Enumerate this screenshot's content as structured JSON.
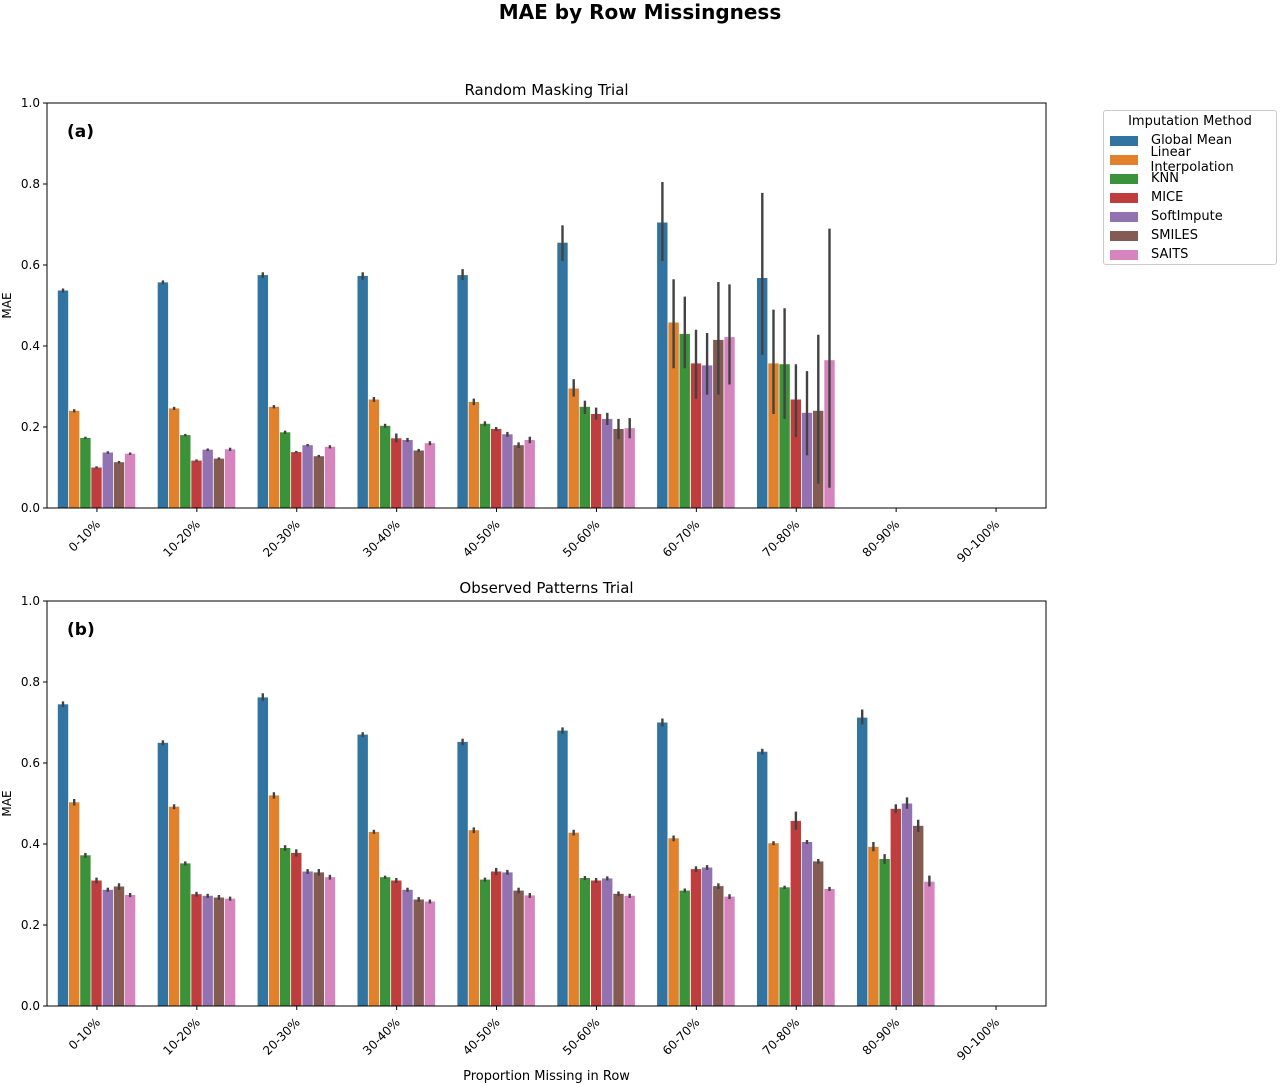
{
  "figure": {
    "suptitle": "MAE by Row Missingness",
    "legend_title": "Imputation Method"
  },
  "methods": [
    {
      "name": "Global Mean",
      "color": "#3274a1"
    },
    {
      "name": "Linear Interpolation",
      "color": "#e1812c"
    },
    {
      "name": "KNN",
      "color": "#3a923a"
    },
    {
      "name": "MICE",
      "color": "#c03d3e"
    },
    {
      "name": "SoftImpute",
      "color": "#9372b2"
    },
    {
      "name": "SMILES",
      "color": "#845b53"
    },
    {
      "name": "SAITS",
      "color": "#d684bd"
    }
  ],
  "chart_data": [
    {
      "type": "bar",
      "title": "Random Masking Trial",
      "panel_label": "(a)",
      "xlabel": "",
      "ylabel": "MAE",
      "ylim": [
        0,
        1.0
      ],
      "yticks": [
        "0.0",
        "0.2",
        "0.4",
        "0.6",
        "0.8",
        "1.0"
      ],
      "categories": [
        "0-10%",
        "10-20%",
        "20-30%",
        "30-40%",
        "40-50%",
        "50-60%",
        "60-70%",
        "70-80%",
        "80-90%",
        "90-100%"
      ],
      "legend": "outside-upper-right",
      "series": [
        {
          "name": "Global Mean",
          "values": [
            0.537,
            0.557,
            0.575,
            0.573,
            0.575,
            0.655,
            0.705,
            0.568,
            null,
            null
          ],
          "err": [
            [
              0.532,
              0.542
            ],
            [
              0.552,
              0.562
            ],
            [
              0.568,
              0.582
            ],
            [
              0.564,
              0.582
            ],
            [
              0.563,
              0.59
            ],
            [
              0.61,
              0.698
            ],
            [
              0.61,
              0.805
            ],
            [
              0.378,
              0.778
            ],
            [
              null,
              null
            ],
            [
              null,
              null
            ]
          ]
        },
        {
          "name": "Linear Interpolation",
          "values": [
            0.24,
            0.246,
            0.25,
            0.268,
            0.262,
            0.295,
            0.458,
            0.357,
            null,
            null
          ],
          "err": [
            [
              0.236,
              0.244
            ],
            [
              0.242,
              0.25
            ],
            [
              0.246,
              0.254
            ],
            [
              0.262,
              0.274
            ],
            [
              0.254,
              0.27
            ],
            [
              0.275,
              0.318
            ],
            [
              0.345,
              0.565
            ],
            [
              0.232,
              0.49
            ],
            [
              null,
              null
            ],
            [
              null,
              null
            ]
          ]
        },
        {
          "name": "KNN",
          "values": [
            0.173,
            0.18,
            0.187,
            0.203,
            0.208,
            0.25,
            0.43,
            0.355,
            null,
            null
          ],
          "err": [
            [
              0.17,
              0.176
            ],
            [
              0.177,
              0.183
            ],
            [
              0.183,
              0.191
            ],
            [
              0.198,
              0.208
            ],
            [
              0.202,
              0.214
            ],
            [
              0.232,
              0.265
            ],
            [
              0.345,
              0.522
            ],
            [
              0.22,
              0.493
            ],
            [
              null,
              null
            ],
            [
              null,
              null
            ]
          ]
        },
        {
          "name": "MICE",
          "values": [
            0.1,
            0.117,
            0.138,
            0.172,
            0.195,
            0.232,
            0.357,
            0.268,
            null,
            null
          ],
          "err": [
            [
              0.097,
              0.103
            ],
            [
              0.114,
              0.12
            ],
            [
              0.135,
              0.141
            ],
            [
              0.162,
              0.184
            ],
            [
              0.19,
              0.2
            ],
            [
              0.218,
              0.248
            ],
            [
              0.27,
              0.44
            ],
            [
              0.175,
              0.355
            ],
            [
              null,
              null
            ],
            [
              null,
              null
            ]
          ]
        },
        {
          "name": "SoftImpute",
          "values": [
            0.137,
            0.144,
            0.155,
            0.168,
            0.182,
            0.22,
            0.352,
            0.235,
            null,
            null
          ],
          "err": [
            [
              0.134,
              0.14
            ],
            [
              0.141,
              0.147
            ],
            [
              0.152,
              0.158
            ],
            [
              0.163,
              0.173
            ],
            [
              0.176,
              0.188
            ],
            [
              0.205,
              0.235
            ],
            [
              0.28,
              0.432
            ],
            [
              0.13,
              0.338
            ],
            [
              null,
              null
            ],
            [
              null,
              null
            ]
          ]
        },
        {
          "name": "SMILES",
          "values": [
            0.113,
            0.122,
            0.128,
            0.142,
            0.155,
            0.195,
            0.415,
            0.24,
            null,
            null
          ],
          "err": [
            [
              0.11,
              0.116
            ],
            [
              0.119,
              0.125
            ],
            [
              0.125,
              0.131
            ],
            [
              0.138,
              0.146
            ],
            [
              0.148,
              0.162
            ],
            [
              0.17,
              0.22
            ],
            [
              0.28,
              0.558
            ],
            [
              0.06,
              0.428
            ],
            [
              null,
              null
            ],
            [
              null,
              null
            ]
          ]
        },
        {
          "name": "SAITS",
          "values": [
            0.134,
            0.145,
            0.151,
            0.16,
            0.168,
            0.197,
            0.422,
            0.365,
            null,
            null
          ],
          "err": [
            [
              0.131,
              0.137
            ],
            [
              0.141,
              0.149
            ],
            [
              0.147,
              0.155
            ],
            [
              0.155,
              0.165
            ],
            [
              0.16,
              0.176
            ],
            [
              0.172,
              0.222
            ],
            [
              0.305,
              0.552
            ],
            [
              0.05,
              0.69
            ],
            [
              null,
              null
            ],
            [
              null,
              null
            ]
          ]
        }
      ]
    },
    {
      "type": "bar",
      "title": "Observed Patterns Trial",
      "panel_label": "(b)",
      "xlabel": "Proportion Missing in Row",
      "ylabel": "MAE",
      "ylim": [
        0,
        1.0
      ],
      "yticks": [
        "0.0",
        "0.2",
        "0.4",
        "0.6",
        "0.8",
        "1.0"
      ],
      "categories": [
        "0-10%",
        "10-20%",
        "20-30%",
        "30-40%",
        "40-50%",
        "50-60%",
        "60-70%",
        "70-80%",
        "80-90%",
        "90-100%"
      ],
      "series": [
        {
          "name": "Global Mean",
          "values": [
            0.745,
            0.65,
            0.762,
            0.67,
            0.652,
            0.68,
            0.7,
            0.628,
            0.712,
            null
          ],
          "err": [
            [
              0.738,
              0.752
            ],
            [
              0.644,
              0.656
            ],
            [
              0.754,
              0.772
            ],
            [
              0.664,
              0.676
            ],
            [
              0.644,
              0.66
            ],
            [
              0.672,
              0.688
            ],
            [
              0.69,
              0.71
            ],
            [
              0.621,
              0.635
            ],
            [
              0.695,
              0.732
            ],
            [
              null,
              null
            ]
          ]
        },
        {
          "name": "Linear Interpolation",
          "values": [
            0.503,
            0.492,
            0.52,
            0.43,
            0.434,
            0.428,
            0.414,
            0.402,
            0.393,
            null
          ],
          "err": [
            [
              0.495,
              0.511
            ],
            [
              0.486,
              0.498
            ],
            [
              0.512,
              0.528
            ],
            [
              0.425,
              0.435
            ],
            [
              0.427,
              0.441
            ],
            [
              0.421,
              0.435
            ],
            [
              0.407,
              0.421
            ],
            [
              0.397,
              0.407
            ],
            [
              0.382,
              0.405
            ],
            [
              null,
              null
            ]
          ]
        },
        {
          "name": "KNN",
          "values": [
            0.372,
            0.352,
            0.39,
            0.318,
            0.312,
            0.316,
            0.285,
            0.293,
            0.363,
            null
          ],
          "err": [
            [
              0.366,
              0.378
            ],
            [
              0.347,
              0.357
            ],
            [
              0.383,
              0.397
            ],
            [
              0.314,
              0.322
            ],
            [
              0.307,
              0.317
            ],
            [
              0.311,
              0.321
            ],
            [
              0.28,
              0.29
            ],
            [
              0.289,
              0.297
            ],
            [
              0.351,
              0.375
            ],
            [
              null,
              null
            ]
          ]
        },
        {
          "name": "MICE",
          "values": [
            0.31,
            0.276,
            0.378,
            0.31,
            0.332,
            0.31,
            0.338,
            0.457,
            0.487,
            null
          ],
          "err": [
            [
              0.303,
              0.317
            ],
            [
              0.27,
              0.282
            ],
            [
              0.369,
              0.387
            ],
            [
              0.304,
              0.316
            ],
            [
              0.323,
              0.341
            ],
            [
              0.304,
              0.316
            ],
            [
              0.331,
              0.345
            ],
            [
              0.435,
              0.48
            ],
            [
              0.476,
              0.498
            ],
            [
              null,
              null
            ]
          ]
        },
        {
          "name": "SoftImpute",
          "values": [
            0.287,
            0.272,
            0.332,
            0.287,
            0.33,
            0.315,
            0.342,
            0.405,
            0.5,
            null
          ],
          "err": [
            [
              0.282,
              0.292
            ],
            [
              0.267,
              0.277
            ],
            [
              0.326,
              0.338
            ],
            [
              0.282,
              0.292
            ],
            [
              0.324,
              0.336
            ],
            [
              0.31,
              0.32
            ],
            [
              0.336,
              0.348
            ],
            [
              0.4,
              0.41
            ],
            [
              0.487,
              0.515
            ],
            [
              null,
              null
            ]
          ]
        },
        {
          "name": "SMILES",
          "values": [
            0.295,
            0.268,
            0.33,
            0.263,
            0.285,
            0.277,
            0.296,
            0.357,
            0.445,
            null
          ],
          "err": [
            [
              0.287,
              0.303
            ],
            [
              0.262,
              0.274
            ],
            [
              0.322,
              0.338
            ],
            [
              0.257,
              0.269
            ],
            [
              0.278,
              0.292
            ],
            [
              0.271,
              0.283
            ],
            [
              0.289,
              0.303
            ],
            [
              0.351,
              0.363
            ],
            [
              0.43,
              0.46
            ],
            [
              null,
              null
            ]
          ]
        },
        {
          "name": "SAITS",
          "values": [
            0.274,
            0.265,
            0.318,
            0.258,
            0.273,
            0.272,
            0.27,
            0.289,
            0.307,
            null
          ],
          "err": [
            [
              0.269,
              0.279
            ],
            [
              0.26,
              0.27
            ],
            [
              0.312,
              0.324
            ],
            [
              0.253,
              0.263
            ],
            [
              0.267,
              0.279
            ],
            [
              0.267,
              0.277
            ],
            [
              0.264,
              0.276
            ],
            [
              0.284,
              0.294
            ],
            [
              0.295,
              0.322
            ],
            [
              null,
              null
            ]
          ]
        }
      ]
    }
  ]
}
